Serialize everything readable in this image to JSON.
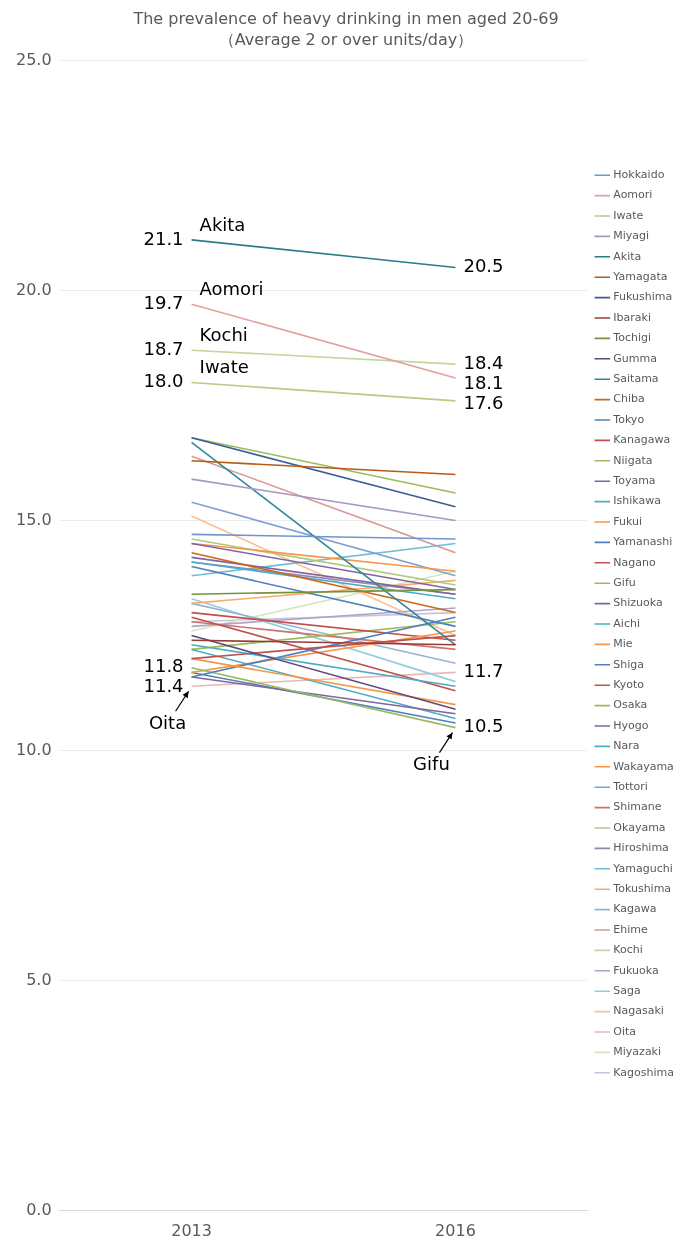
{
  "chart_data": {
    "type": "line",
    "title": "The prevalence of heavy drinking in men aged 20-69",
    "subtitle": "（Average 2 or over units/day）",
    "categories": [
      "2013",
      "2016"
    ],
    "ylim": [
      0,
      25
    ],
    "yticks": [
      {
        "value": 0,
        "label": "0.0"
      },
      {
        "value": 5,
        "label": "5.0"
      },
      {
        "value": 10,
        "label": "10.0"
      },
      {
        "value": 15,
        "label": "15.0"
      },
      {
        "value": 20,
        "label": "20.0"
      },
      {
        "value": 25,
        "label": "25.0"
      }
    ],
    "grid": "y",
    "legend": "right",
    "marker": "none",
    "series": [
      {
        "name": "Hokkaido",
        "color": "#6f95cc",
        "values": [
          14.7,
          14.6
        ]
      },
      {
        "name": "Aomori",
        "color": "#e0a09e",
        "values": [
          19.7,
          18.1
        ],
        "value_labels": [
          "19.7",
          "18.1"
        ]
      },
      {
        "name": "Iwate",
        "color": "#b4cc84",
        "values": [
          18.0,
          17.6
        ],
        "value_labels": [
          "18.0",
          "17.6"
        ]
      },
      {
        "name": "Miyagi",
        "color": "#a796c2",
        "values": [
          15.9,
          15.0
        ]
      },
      {
        "name": "Akita",
        "color": "#2c7c8c",
        "values": [
          21.1,
          20.5
        ],
        "value_labels": [
          "21.1",
          "20.5"
        ]
      },
      {
        "name": "Yamagata",
        "color": "#b85a1a",
        "values": [
          16.3,
          16.0
        ]
      },
      {
        "name": "Fukushima",
        "color": "#3a5f95",
        "values": [
          16.8,
          15.3
        ]
      },
      {
        "name": "Ibaraki",
        "color": "#983b38",
        "values": [
          12.4,
          12.3
        ]
      },
      {
        "name": "Tochigi",
        "color": "#76923c",
        "values": [
          13.4,
          13.5
        ]
      },
      {
        "name": "Gumma",
        "color": "#604a7b",
        "values": [
          12.5,
          10.9
        ]
      },
      {
        "name": "Saitama",
        "color": "#31869b",
        "values": [
          16.7,
          12.3
        ]
      },
      {
        "name": "Chiba",
        "color": "#c96b1f",
        "values": [
          14.3,
          13.0
        ]
      },
      {
        "name": "Tokyo",
        "color": "#4f81bd",
        "values": [
          14.0,
          12.7
        ]
      },
      {
        "name": "Kanagawa",
        "color": "#c0504d",
        "values": [
          12.0,
          12.5
        ]
      },
      {
        "name": "Niigata",
        "color": "#9bbb59",
        "values": [
          16.8,
          15.6
        ]
      },
      {
        "name": "Toyama",
        "color": "#8064a2",
        "values": [
          14.2,
          13.4
        ]
      },
      {
        "name": "Ishikawa",
        "color": "#4bacc6",
        "values": [
          12.3,
          11.4
        ]
      },
      {
        "name": "Fukui",
        "color": "#f79646",
        "values": [
          12.0,
          11.0
        ]
      },
      {
        "name": "Yamanashi",
        "color": "#4f81bd",
        "values": [
          11.6,
          12.9
        ]
      },
      {
        "name": "Nagano",
        "color": "#c0504d",
        "values": [
          12.9,
          11.3
        ]
      },
      {
        "name": "Gifu",
        "color": "#9bbb59",
        "values": [
          11.8,
          10.5
        ],
        "value_labels": [
          "11.8",
          "10.5"
        ]
      },
      {
        "name": "Shizuoka",
        "color": "#8064a2",
        "values": [
          11.6,
          10.8
        ]
      },
      {
        "name": "Aichi",
        "color": "#4bacc6",
        "values": [
          12.2,
          10.7
        ]
      },
      {
        "name": "Mie",
        "color": "#f79646",
        "values": [
          11.7,
          12.6
        ]
      },
      {
        "name": "Shiga",
        "color": "#4f81bd",
        "values": [
          11.7,
          10.6
        ]
      },
      {
        "name": "Kyoto",
        "color": "#c0504d",
        "values": [
          13.0,
          12.4
        ]
      },
      {
        "name": "Osaka",
        "color": "#9bbb59",
        "values": [
          12.2,
          12.8
        ]
      },
      {
        "name": "Hyogo",
        "color": "#8064a2",
        "values": [
          14.5,
          13.5
        ]
      },
      {
        "name": "Nara",
        "color": "#4bacc6",
        "values": [
          14.1,
          13.3
        ]
      },
      {
        "name": "Wakayama",
        "color": "#f79646",
        "values": [
          14.5,
          13.9
        ]
      },
      {
        "name": "Tottori",
        "color": "#7f9fcf",
        "values": [
          15.4,
          13.8
        ]
      },
      {
        "name": "Shimane",
        "color": "#cd7371",
        "values": [
          12.8,
          12.2
        ]
      },
      {
        "name": "Okayama",
        "color": "#afc97a",
        "values": [
          14.6,
          13.6
        ]
      },
      {
        "name": "Hiroshima",
        "color": "#9983b5",
        "values": [
          14.1,
          13.4
        ]
      },
      {
        "name": "Yamaguchi",
        "color": "#6fbdd1",
        "values": [
          13.8,
          14.5
        ]
      },
      {
        "name": "Tokushima",
        "color": "#f9ab6b",
        "values": [
          13.2,
          13.7
        ]
      },
      {
        "name": "Kagawa",
        "color": "#95b3d7",
        "values": [
          13.2,
          11.9
        ]
      },
      {
        "name": "Ehime",
        "color": "#d99795",
        "values": [
          16.4,
          14.3
        ]
      },
      {
        "name": "Kochi",
        "color": "#c3d69b",
        "values": [
          18.7,
          18.4
        ],
        "value_labels": [
          "18.7",
          "18.4"
        ]
      },
      {
        "name": "Fukuoka",
        "color": "#b3a2c7",
        "values": [
          12.7,
          13.1
        ]
      },
      {
        "name": "Saga",
        "color": "#93cddd",
        "values": [
          13.3,
          11.5
        ]
      },
      {
        "name": "Nagasaki",
        "color": "#fac090",
        "values": [
          15.1,
          12.5
        ]
      },
      {
        "name": "Oita",
        "color": "#e6b9b8",
        "values": [
          11.4,
          11.7
        ],
        "value_labels": [
          "11.4",
          "11.7"
        ]
      },
      {
        "name": "Miyazaki",
        "color": "#d7e4bd",
        "values": [
          12.6,
          13.9
        ]
      },
      {
        "name": "Kagoshima",
        "color": "#ccc1da",
        "values": [
          12.8,
          13.0
        ]
      }
    ],
    "annotations": [
      {
        "text": "Akita",
        "x": "2013",
        "y": 21.1
      },
      {
        "text": "Aomori",
        "x": "2013",
        "y": 19.7
      },
      {
        "text": "Kochi",
        "x": "2013",
        "y": 18.7
      },
      {
        "text": "Iwate",
        "x": "2013",
        "y": 18.0
      },
      {
        "text": "Oita",
        "x": "2013",
        "y": 11.4
      },
      {
        "text": "Gifu",
        "x": "2016",
        "y": 10.5
      }
    ]
  }
}
